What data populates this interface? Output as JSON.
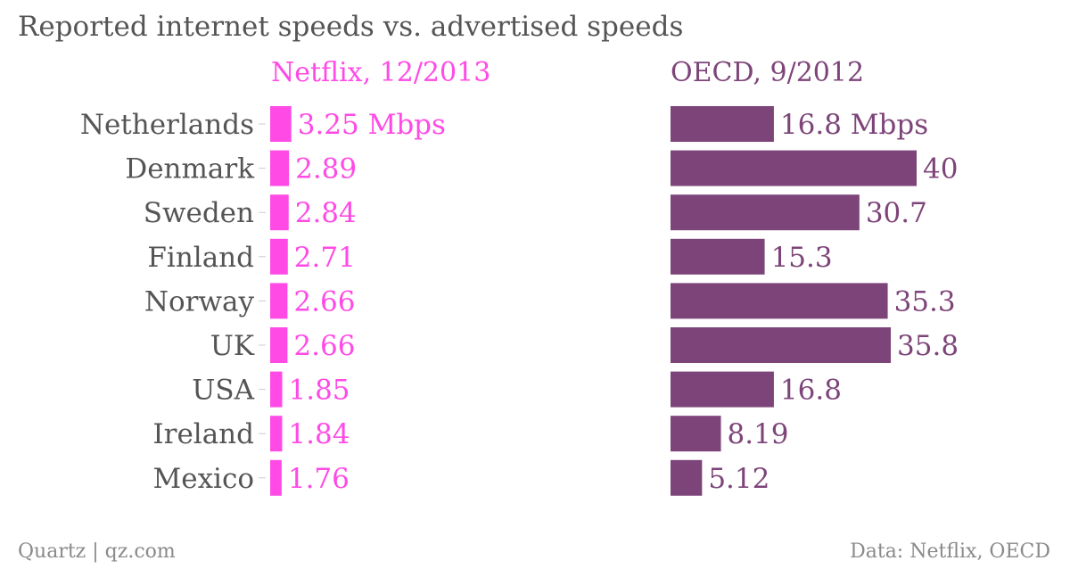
{
  "title": "Reported internet speeds vs. advertised speeds",
  "footer": {
    "left": "Quartz | qz.com",
    "right": "Data: Netflix, OECD"
  },
  "colors": {
    "netflix": "#ff4ae6",
    "oecd": "#7d4479",
    "text": "#555555"
  },
  "chart_data": [
    {
      "type": "bar",
      "orientation": "horizontal",
      "title": "Netflix, 12/2013",
      "unit": "Mbps",
      "categories": [
        "Netherlands",
        "Denmark",
        "Sweden",
        "Finland",
        "Norway",
        "UK",
        "USA",
        "Ireland",
        "Mexico"
      ],
      "values": [
        3.25,
        2.89,
        2.84,
        2.71,
        2.66,
        2.66,
        1.85,
        1.84,
        1.76
      ],
      "labels": [
        "3.25 Mbps",
        "2.89",
        "2.84",
        "2.71",
        "2.66",
        "2.66",
        "1.85",
        "1.84",
        "1.76"
      ]
    },
    {
      "type": "bar",
      "orientation": "horizontal",
      "title": "OECD, 9/2012",
      "unit": "Mbps",
      "categories": [
        "Netherlands",
        "Denmark",
        "Sweden",
        "Finland",
        "Norway",
        "UK",
        "USA",
        "Ireland",
        "Mexico"
      ],
      "values": [
        16.8,
        40,
        30.7,
        15.3,
        35.3,
        35.8,
        16.8,
        8.19,
        5.12
      ],
      "labels": [
        "16.8 Mbps",
        "40",
        "30.7",
        "15.3",
        "35.3",
        "35.8",
        "16.8",
        "8.19",
        "5.12"
      ]
    }
  ]
}
